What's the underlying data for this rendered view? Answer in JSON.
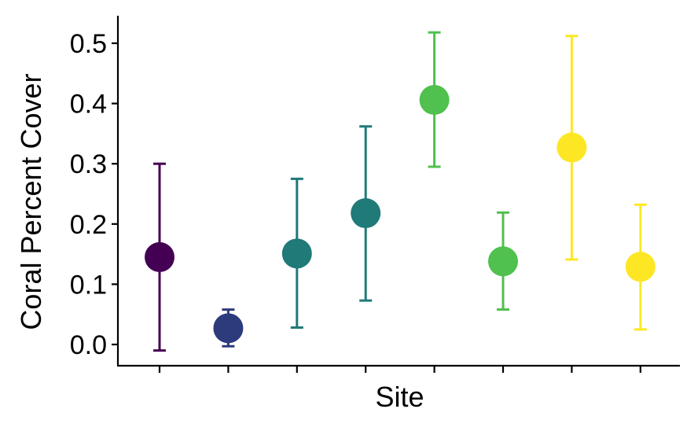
{
  "chart_data": {
    "type": "scatter",
    "xlabel": "Site",
    "ylabel": "Coral Percent Cover",
    "ylim": [
      -0.035,
      0.545
    ],
    "yticks": [
      "0.0",
      "0.1",
      "0.2",
      "0.3",
      "0.4",
      "0.5"
    ],
    "grid": false,
    "legend": "none",
    "points": [
      {
        "x": 1,
        "y": 0.145,
        "lower": -0.01,
        "upper": 0.3,
        "color": "#440154"
      },
      {
        "x": 2,
        "y": 0.027,
        "lower": -0.003,
        "upper": 0.058,
        "color": "#2D3A7C"
      },
      {
        "x": 3,
        "y": 0.151,
        "lower": 0.028,
        "upper": 0.275,
        "color": "#1F7A78"
      },
      {
        "x": 4,
        "y": 0.218,
        "lower": 0.073,
        "upper": 0.362,
        "color": "#1F7A78"
      },
      {
        "x": 5,
        "y": 0.406,
        "lower": 0.295,
        "upper": 0.518,
        "color": "#50C04E"
      },
      {
        "x": 6,
        "y": 0.138,
        "lower": 0.058,
        "upper": 0.219,
        "color": "#50C04E"
      },
      {
        "x": 7,
        "y": 0.327,
        "lower": 0.141,
        "upper": 0.512,
        "color": "#FDE725"
      },
      {
        "x": 8,
        "y": 0.129,
        "lower": 0.025,
        "upper": 0.232,
        "color": "#FDE725"
      }
    ]
  }
}
